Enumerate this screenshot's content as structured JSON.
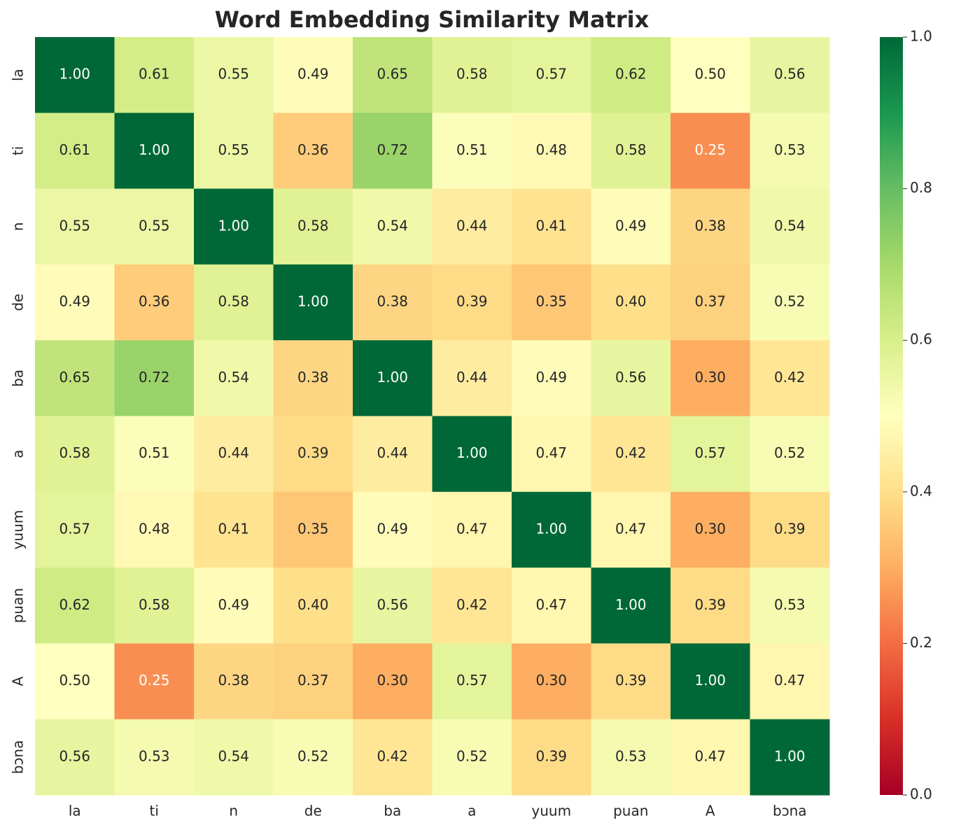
{
  "chart_data": {
    "type": "heatmap",
    "title": "Word Embedding Similarity Matrix",
    "x_categories": [
      "la",
      "ti",
      "n",
      "de",
      "ba",
      "a",
      "yuum",
      "puan",
      "A",
      "bɔna"
    ],
    "y_categories": [
      "la",
      "ti",
      "n",
      "de",
      "ba",
      "a",
      "yuum",
      "puan",
      "A",
      "bɔna"
    ],
    "values": [
      [
        1,
        0.61,
        0.55,
        0.49,
        0.65,
        0.58,
        0.57,
        0.62,
        0.5,
        0.56
      ],
      [
        0.61,
        1,
        0.55,
        0.36,
        0.72,
        0.51,
        0.48,
        0.58,
        0.25,
        0.53
      ],
      [
        0.55,
        0.55,
        1,
        0.58,
        0.54,
        0.44,
        0.41,
        0.49,
        0.38,
        0.54
      ],
      [
        0.49,
        0.36,
        0.58,
        1,
        0.38,
        0.39,
        0.35,
        0.4,
        0.37,
        0.52
      ],
      [
        0.65,
        0.72,
        0.54,
        0.38,
        1,
        0.44,
        0.49,
        0.56,
        0.3,
        0.42
      ],
      [
        0.58,
        0.51,
        0.44,
        0.39,
        0.44,
        1,
        0.47,
        0.42,
        0.57,
        0.52
      ],
      [
        0.57,
        0.48,
        0.41,
        0.35,
        0.49,
        0.47,
        1,
        0.47,
        0.3,
        0.39
      ],
      [
        0.62,
        0.58,
        0.49,
        0.4,
        0.56,
        0.42,
        0.47,
        1,
        0.39,
        0.53
      ],
      [
        0.5,
        0.25,
        0.38,
        0.37,
        0.3,
        0.57,
        0.3,
        0.39,
        1,
        0.47
      ],
      [
        0.56,
        0.53,
        0.54,
        0.52,
        0.42,
        0.52,
        0.39,
        0.53,
        0.47,
        1
      ]
    ],
    "value_labels": [
      [
        "1.00",
        "0.61",
        "0.55",
        "0.49",
        "0.65",
        "0.58",
        "0.57",
        "0.62",
        "0.50",
        "0.56"
      ],
      [
        "0.61",
        "1.00",
        "0.55",
        "0.36",
        "0.72",
        "0.51",
        "0.48",
        "0.58",
        "0.25",
        "0.53"
      ],
      [
        "0.55",
        "0.55",
        "1.00",
        "0.58",
        "0.54",
        "0.44",
        "0.41",
        "0.49",
        "0.38",
        "0.54"
      ],
      [
        "0.49",
        "0.36",
        "0.58",
        "1.00",
        "0.38",
        "0.39",
        "0.35",
        "0.40",
        "0.37",
        "0.52"
      ],
      [
        "0.65",
        "0.72",
        "0.54",
        "0.38",
        "1.00",
        "0.44",
        "0.49",
        "0.56",
        "0.30",
        "0.42"
      ],
      [
        "0.58",
        "0.51",
        "0.44",
        "0.39",
        "0.44",
        "1.00",
        "0.47",
        "0.42",
        "0.57",
        "0.52"
      ],
      [
        "0.57",
        "0.48",
        "0.41",
        "0.35",
        "0.49",
        "0.47",
        "1.00",
        "0.47",
        "0.30",
        "0.39"
      ],
      [
        "0.62",
        "0.58",
        "0.49",
        "0.40",
        "0.56",
        "0.42",
        "0.47",
        "1.00",
        "0.39",
        "0.53"
      ],
      [
        "0.50",
        "0.25",
        "0.38",
        "0.37",
        "0.30",
        "0.57",
        "0.30",
        "0.39",
        "1.00",
        "0.47"
      ],
      [
        "0.56",
        "0.53",
        "0.54",
        "0.52",
        "0.42",
        "0.52",
        "0.39",
        "0.53",
        "0.47",
        "1.00"
      ]
    ],
    "colormap": "RdYlGn",
    "zlim": [
      0,
      1
    ],
    "zticks": [
      {
        "value": 0,
        "label": "0.0"
      },
      0.2,
      0.4,
      0.6,
      0.8,
      {
        "value": 1,
        "label": "1.0"
      }
    ]
  }
}
